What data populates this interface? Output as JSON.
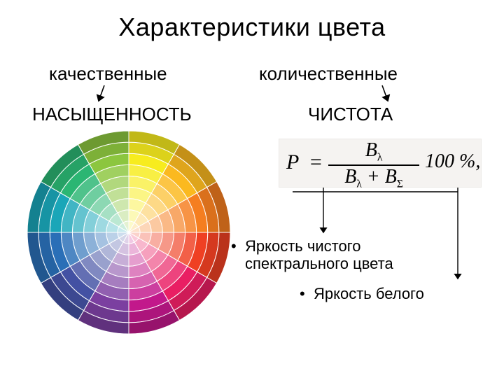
{
  "title": "Характеристики цвета",
  "labels": {
    "qualitative": "качественные",
    "quantitative": "количественные",
    "saturation": "НАСЫЩЕННОСТЬ",
    "purity": "ЧИСТОТА"
  },
  "formula": {
    "P": "P",
    "eq": "=",
    "num_B": "B",
    "num_sub": "λ",
    "den_B1": "B",
    "den_sub1": "λ",
    "den_plus": " + ",
    "den_B2": "B",
    "den_sub2": "Σ",
    "tail": "100 %,"
  },
  "bullets": {
    "spectral": "Яркость чистого спектрального цвета",
    "white": "Яркость белого"
  },
  "colorwheel": {
    "type": "radial-color-wheel",
    "segments": 12,
    "rings": 9,
    "radius": 145,
    "start_angle_deg": -90,
    "hues": [
      "#f7ec1e",
      "#fbb91f",
      "#f57e20",
      "#ef4023",
      "#e91e63",
      "#c2188b",
      "#7b3fa0",
      "#4351a3",
      "#2a6fb7",
      "#1aa6b8",
      "#2bb673",
      "#8cc63f"
    ],
    "ring_lightness": [
      0.95,
      0.9,
      0.84,
      0.77,
      0.69,
      0.6,
      0.5,
      0.4,
      0.3
    ],
    "stroke": "#ffffff",
    "stroke_width": 1
  },
  "arrows": {
    "short": {
      "stroke": "#000000",
      "width": 1.6
    },
    "formula_connector": {
      "stroke": "#000000",
      "width": 1.4
    }
  },
  "colors": {
    "text": "#000000",
    "background": "#ffffff",
    "formula_bg": "#f5f3f1"
  },
  "fonts": {
    "title_pt": 36,
    "label_pt": 26,
    "bullet_pt": 22,
    "formula_pt": 30
  }
}
